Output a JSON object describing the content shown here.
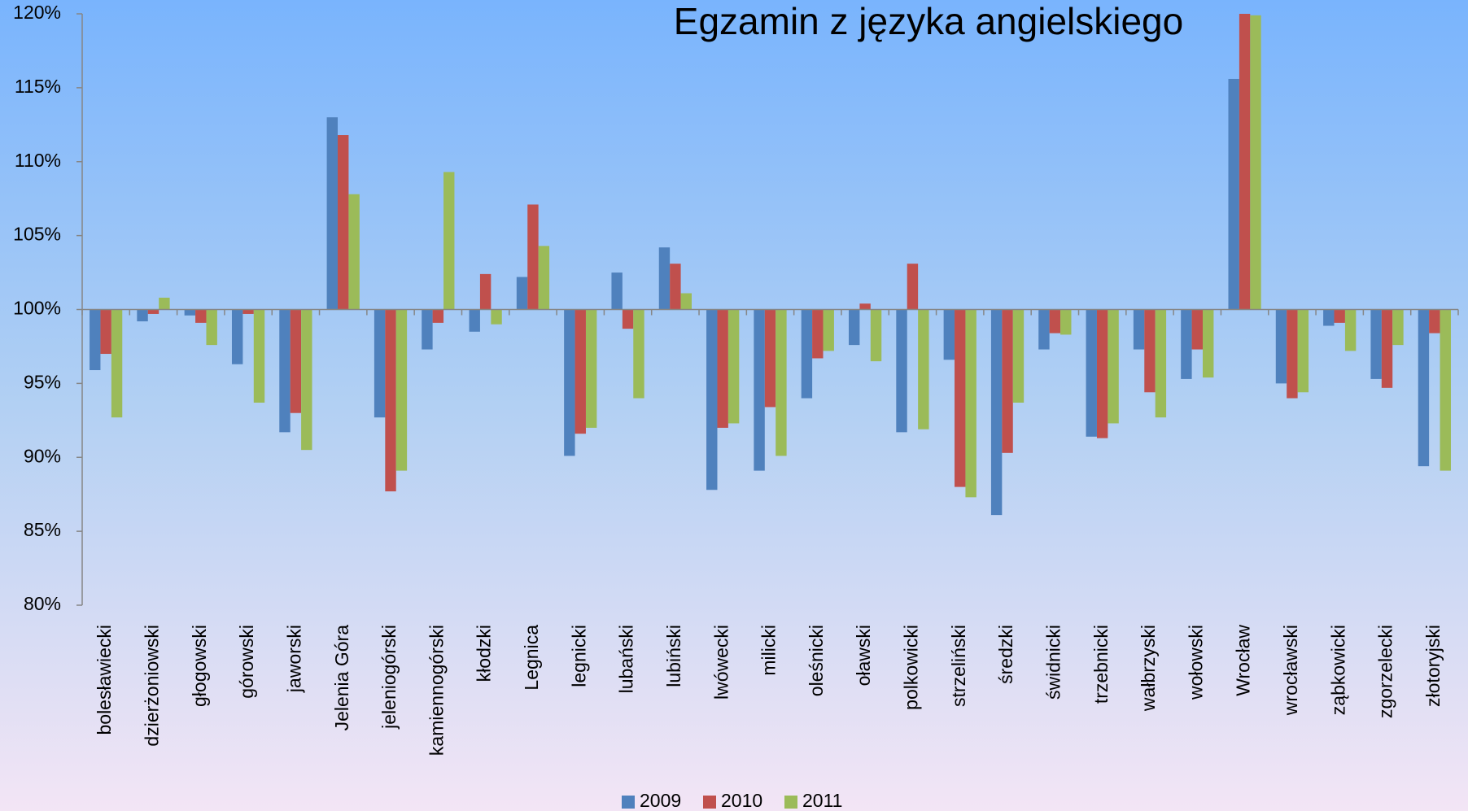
{
  "chart_data": {
    "type": "bar",
    "title": "Egzamin z języka angielskiego",
    "categories": [
      "bolesławiecki",
      "dzierżoniowski",
      "głogowski",
      "górowski",
      "jaworski",
      "Jelenia Góra",
      "jeleniogórski",
      "kamiennogórski",
      "kłodzki",
      "Legnica",
      "legnicki",
      "lubański",
      "lubiński",
      "lwówecki",
      "milicki",
      "oleśnicki",
      "oławski",
      "polkowicki",
      "strzeliński",
      "średzki",
      "świdnicki",
      "trzebnicki",
      "wałbrzyski",
      "wołowski",
      "Wrocław",
      "wrocławski",
      "ząbkowicki",
      "zgorzelecki",
      "złotoryjski"
    ],
    "series": [
      {
        "name": "2009",
        "color": "#4f81bd",
        "values": [
          95.9,
          99.2,
          99.6,
          96.3,
          91.7,
          113.0,
          92.7,
          97.3,
          98.5,
          102.2,
          90.1,
          102.5,
          104.2,
          87.8,
          89.1,
          94.0,
          97.6,
          91.7,
          96.6,
          86.1,
          97.3,
          91.4,
          97.3,
          95.3,
          115.6,
          95.0,
          98.9,
          95.3,
          89.4
        ]
      },
      {
        "name": "2010",
        "color": "#c0504d",
        "values": [
          97.0,
          99.7,
          99.1,
          99.7,
          93.0,
          111.8,
          87.7,
          99.1,
          102.4,
          107.1,
          91.6,
          98.7,
          103.1,
          92.0,
          93.4,
          96.7,
          100.4,
          103.1,
          88.0,
          90.3,
          98.4,
          91.3,
          94.4,
          97.3,
          120,
          94.0,
          99.1,
          94.7,
          98.4
        ]
      },
      {
        "name": "2011",
        "color": "#9bbb59",
        "values": [
          92.7,
          100.8,
          97.6,
          93.7,
          90.5,
          107.8,
          89.1,
          109.3,
          99.0,
          104.3,
          92.0,
          94.0,
          101.1,
          92.3,
          90.1,
          97.2,
          96.5,
          91.9,
          87.3,
          93.7,
          98.3,
          92.3,
          92.7,
          95.4,
          119.9,
          94.4,
          97.2,
          97.6,
          89.1
        ]
      }
    ],
    "ylim": [
      80,
      120
    ],
    "yticks": [
      {
        "value": 80,
        "label": "80%"
      },
      {
        "value": 85,
        "label": "85%"
      },
      {
        "value": 90,
        "label": "90%"
      },
      {
        "value": 95,
        "label": "95%"
      },
      {
        "value": 100,
        "label": "100%"
      },
      {
        "value": 105,
        "label": "105%"
      },
      {
        "value": 110,
        "label": "110%"
      },
      {
        "value": 115,
        "label": "115%"
      },
      {
        "value": 120,
        "label": "120%"
      }
    ],
    "x_axis_crosses": 100,
    "grid": false,
    "legend": "bottom"
  }
}
